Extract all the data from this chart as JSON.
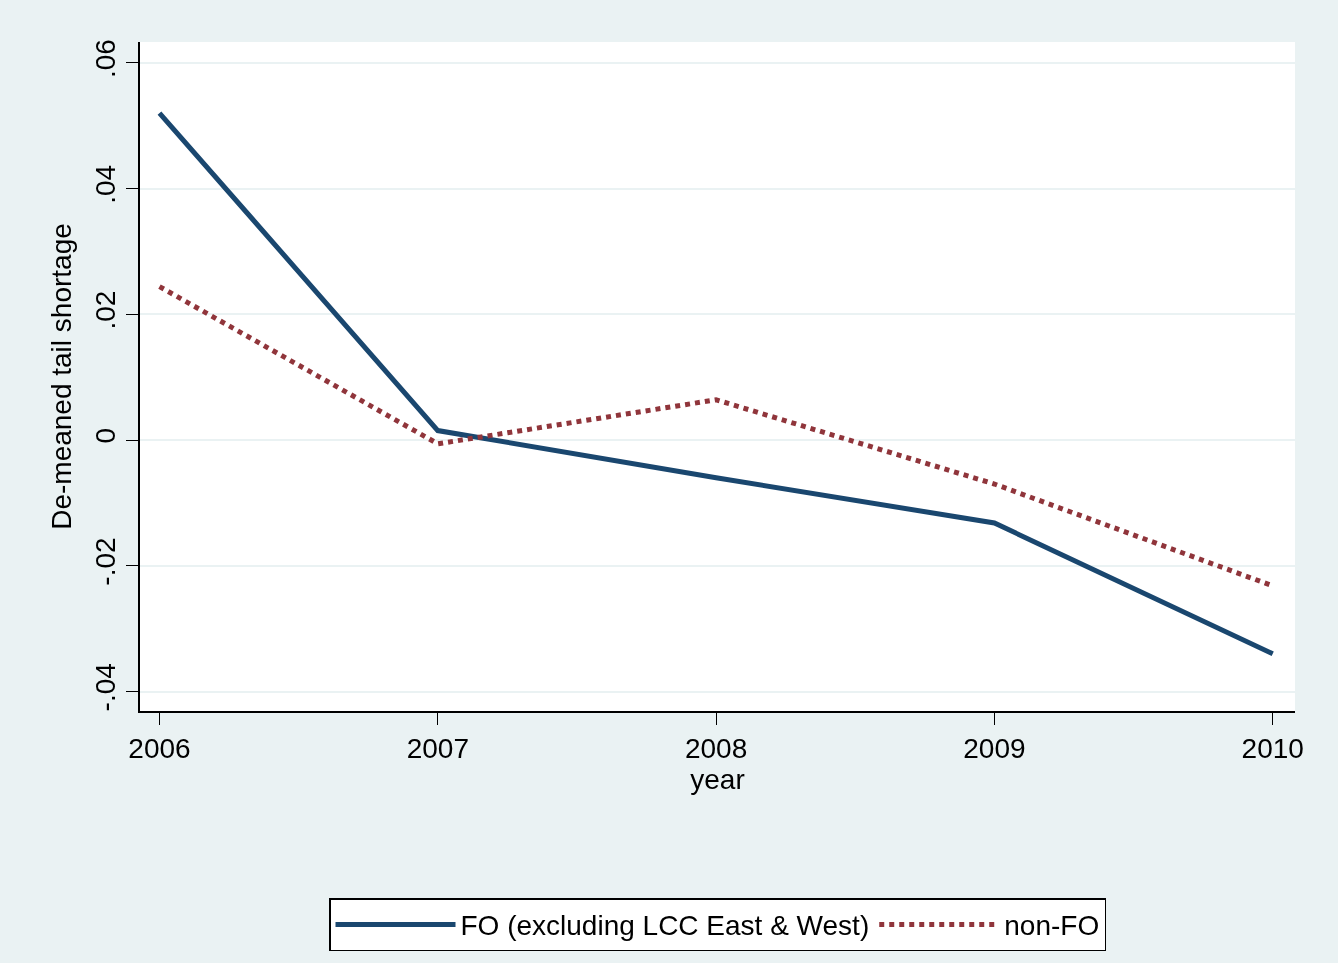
{
  "chart_data": {
    "type": "line",
    "xlabel": "year",
    "ylabel": "De-meaned tail shortage",
    "x": [
      2006,
      2007,
      2008,
      2009,
      2010
    ],
    "series": [
      {
        "name": "FO (excluding LCC East & West)",
        "color": "#1a476f",
        "line_style": "solid",
        "values": [
          0.052,
          0.0015,
          -0.006,
          -0.0132,
          -0.034
        ]
      },
      {
        "name": "non-FO",
        "color": "#90353b",
        "line_style": "dotted",
        "values": [
          0.0244,
          -0.0006,
          0.0064,
          -0.007,
          -0.0232
        ]
      }
    ],
    "xlim": [
      2005.93,
      2010.08
    ],
    "xticks": [
      2006,
      2007,
      2008,
      2009,
      2010
    ],
    "ylim": [
      -0.0431,
      0.0633
    ],
    "yticks": [
      {
        "value": -0.04,
        "label": "-.04"
      },
      {
        "value": -0.02,
        "label": "-.02"
      },
      0,
      {
        "value": 0.02,
        "label": ".02"
      },
      {
        "value": 0.04,
        "label": ".04"
      },
      {
        "value": 0.06,
        "label": ".06"
      }
    ],
    "grid": "y",
    "legend": "bottom",
    "marker": "none"
  }
}
